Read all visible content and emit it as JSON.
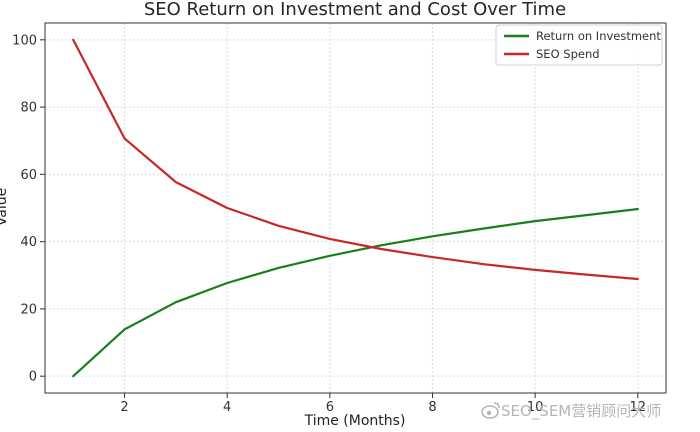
{
  "chart_data": {
    "type": "line",
    "title": "SEO Return on Investment and Cost Over Time",
    "xlabel": "Time (Months)",
    "ylabel": "Value",
    "x": [
      1,
      2,
      3,
      4,
      5,
      6,
      7,
      8,
      9,
      10,
      11,
      12
    ],
    "xlim": [
      0.45,
      12.55
    ],
    "ylim": [
      -5,
      105
    ],
    "xticks": [
      2,
      4,
      6,
      8,
      10,
      12
    ],
    "yticks": [
      0,
      20,
      40,
      60,
      80,
      100
    ],
    "grid": true,
    "legend_position": "top-right",
    "series": [
      {
        "name": "Return on Investment",
        "color": "#1a7f1a",
        "values": [
          0,
          13.9,
          22.0,
          27.7,
          32.2,
          35.8,
          38.9,
          41.6,
          43.9,
          46.1,
          47.9,
          49.7
        ]
      },
      {
        "name": "SEO Spend",
        "color": "#c62828",
        "values": [
          100,
          70.7,
          57.7,
          50.0,
          44.7,
          40.8,
          37.8,
          35.4,
          33.3,
          31.6,
          30.2,
          28.9
        ]
      }
    ]
  },
  "watermark": {
    "text": "SEO_SEM营销顾问大师",
    "icon": "weibo-icon"
  }
}
